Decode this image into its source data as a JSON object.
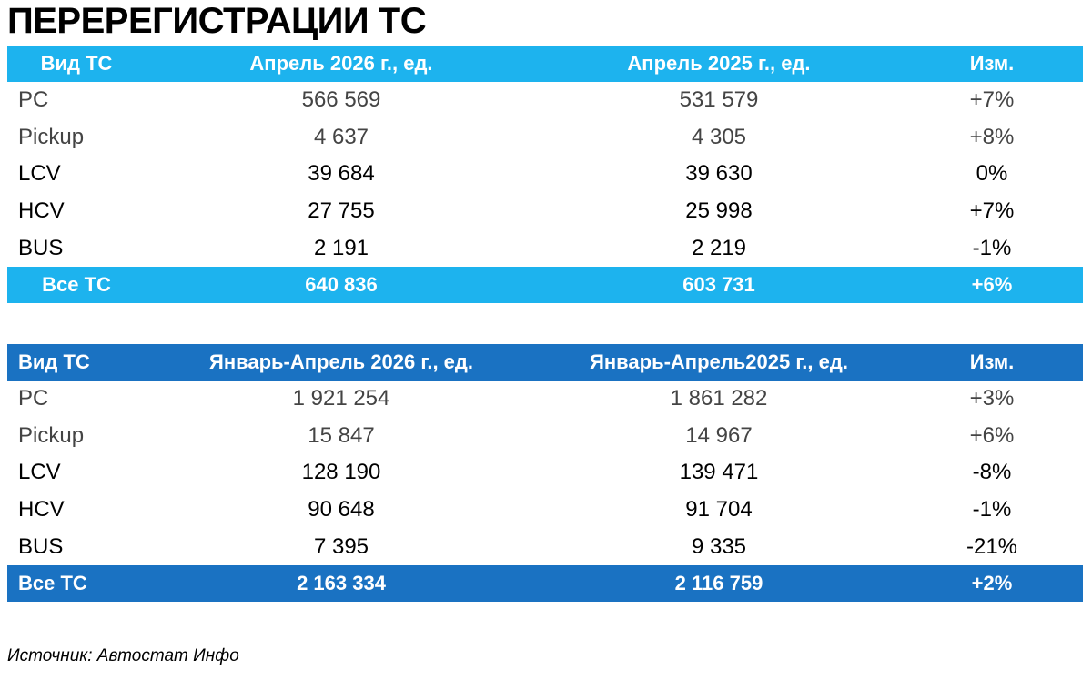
{
  "title": "ПЕРЕРЕГИСТРАЦИИ ТС",
  "tables": [
    {
      "header": [
        "Вид ТС",
        "Апрель 2026 г., ед.",
        "Апрель 2025 г., ед.",
        "Изм."
      ],
      "rows": [
        [
          "PC",
          "566 569",
          "531 579",
          "+7%"
        ],
        [
          "Pickup",
          "4 637",
          "4 305",
          "+8%"
        ],
        [
          "LCV",
          "39 684",
          "39 630",
          "0%"
        ],
        [
          "HCV",
          "27 755",
          "25 998",
          "+7%"
        ],
        [
          "BUS",
          "2 191",
          "2 219",
          "-1%"
        ]
      ],
      "total": [
        "Все ТС",
        "640 836",
        "603 731",
        "+6%"
      ]
    },
    {
      "header": [
        "Вид ТС",
        "Январь-Апрель 2026 г., ед.",
        "Январь-Апрель2025 г., ед.",
        "Изм."
      ],
      "rows": [
        [
          "PC",
          "1 921 254",
          "1 861 282",
          "+3%"
        ],
        [
          "Pickup",
          "15 847",
          "14 967",
          "+6%"
        ],
        [
          "LCV",
          "128 190",
          "139 471",
          "-8%"
        ],
        [
          "HCV",
          "90 648",
          "91 704",
          "-1%"
        ],
        [
          "BUS",
          "7 395",
          "9 335",
          "-21%"
        ]
      ],
      "total": [
        "Все ТС",
        "2 163 334",
        "2 116 759",
        "+2%"
      ]
    }
  ],
  "source": "Источник: Автостат Инфо"
}
